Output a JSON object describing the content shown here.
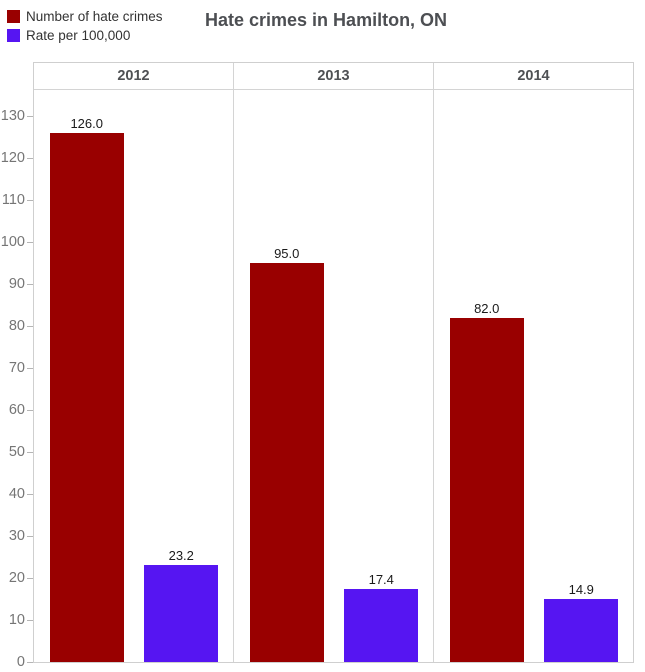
{
  "chart_data": {
    "type": "bar",
    "title": "Hate crimes in Hamilton, ON",
    "categories": [
      "2012",
      "2013",
      "2014"
    ],
    "series": [
      {
        "name": "Number of hate crimes",
        "color": "#990000",
        "values": [
          126.0,
          95.0,
          82.0
        ]
      },
      {
        "name": "Rate per 100,000",
        "color": "#5615f2",
        "values": [
          23.2,
          17.4,
          14.9
        ]
      }
    ],
    "value_labels": [
      [
        "126.0",
        "95.0",
        "82.0"
      ],
      [
        "23.2",
        "17.4",
        "14.9"
      ]
    ],
    "ylabel": "",
    "xlabel": "",
    "ylim": [
      0,
      136
    ],
    "y_ticks": [
      0,
      10,
      20,
      30,
      40,
      50,
      60,
      70,
      80,
      90,
      100,
      110,
      120,
      130
    ],
    "grid": "column-dividers",
    "legend_position": "top-left",
    "colors": {
      "bar_red": "#990000",
      "bar_blue": "#5615f2",
      "gridline": "#cfcfcf",
      "title_text": "#4d4f53",
      "axis_text": "#757575"
    }
  }
}
